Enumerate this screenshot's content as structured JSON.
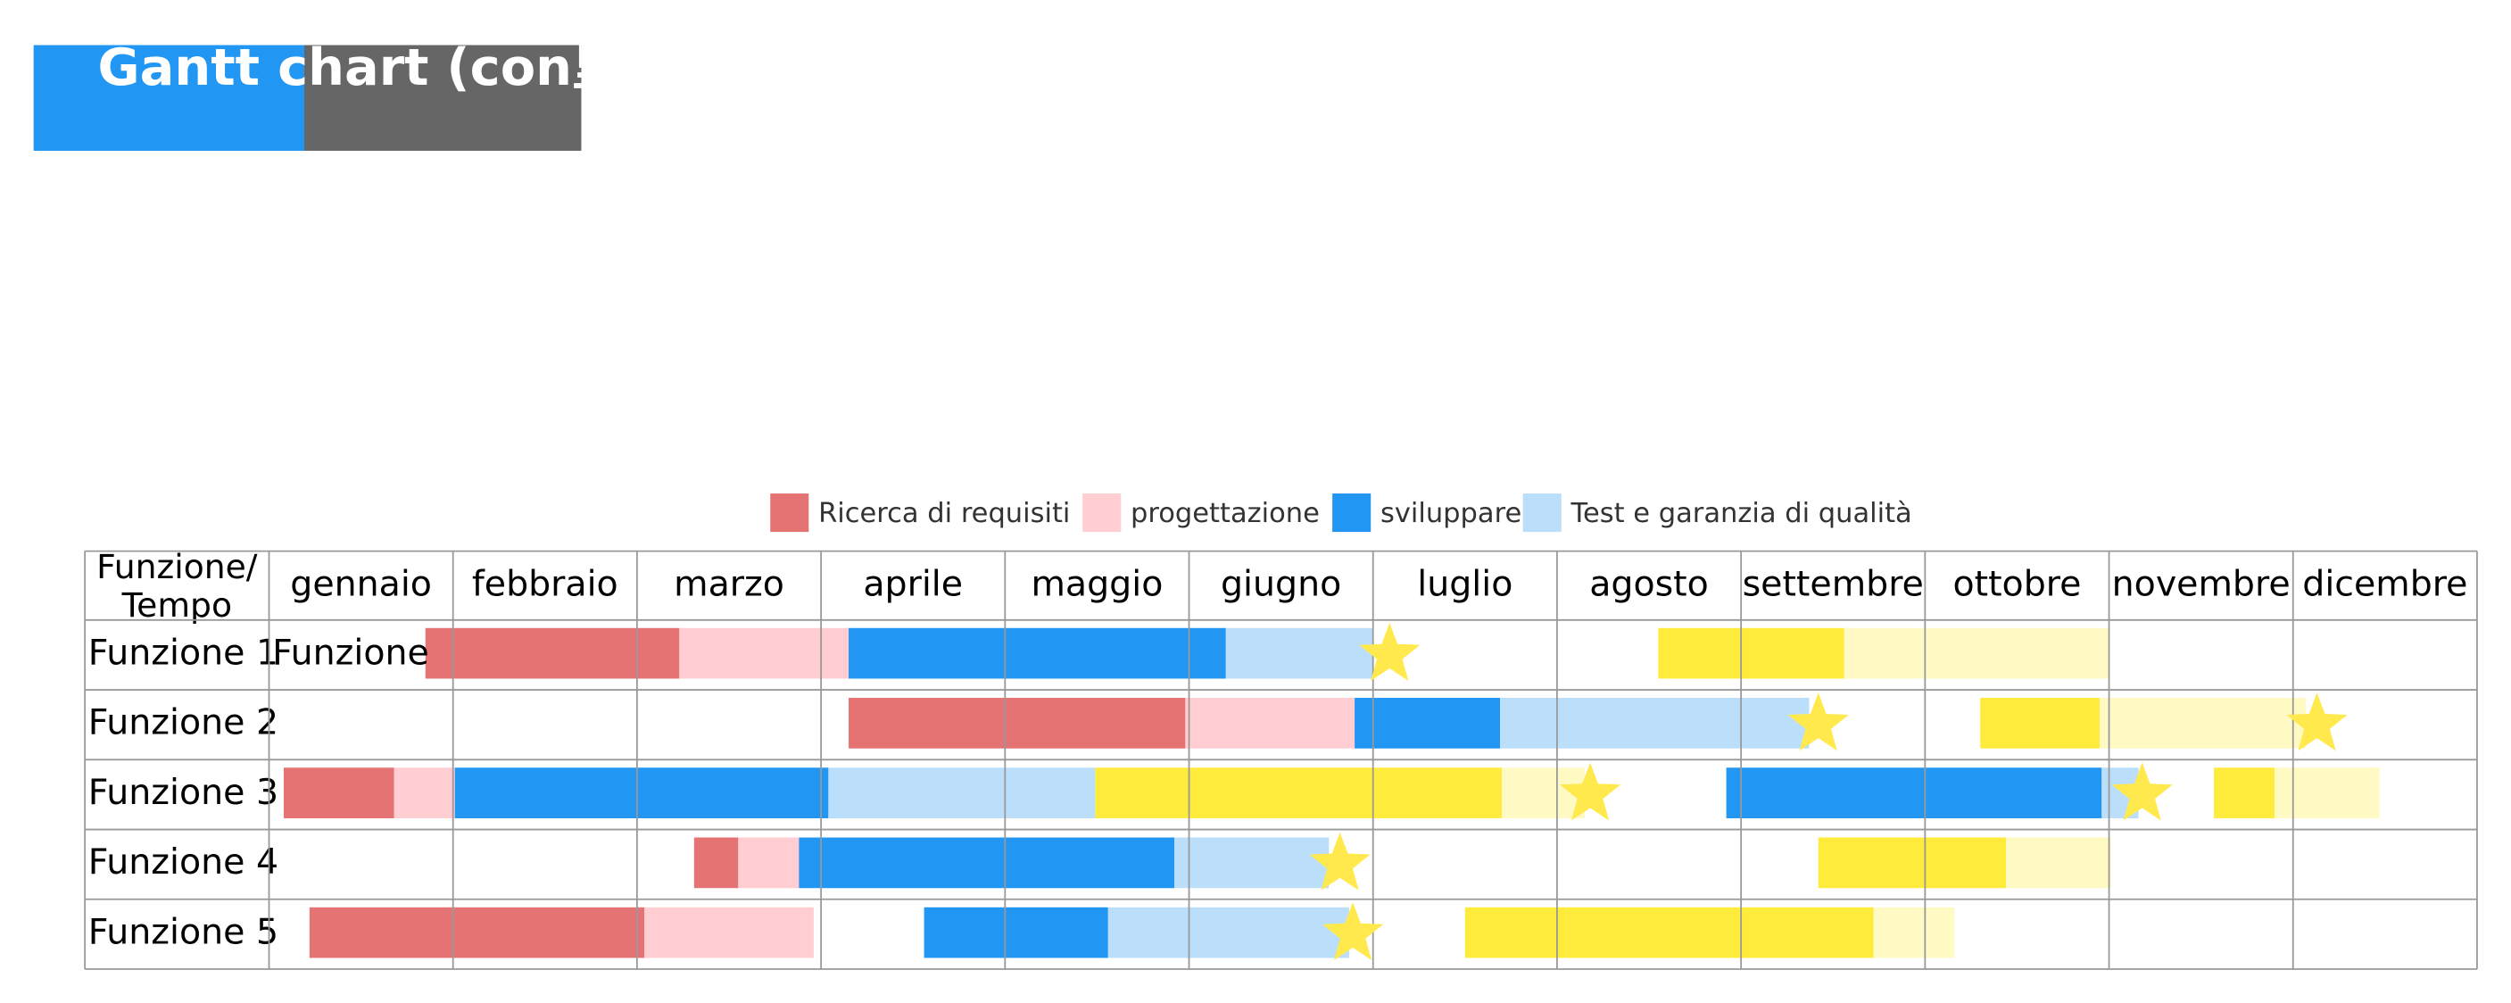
{
  "title": "Gantt chart (con里程碑)",
  "legend": [
    {
      "name": "Ricerca di requisiti",
      "color": "#e57373"
    },
    {
      "name": "progettazione",
      "color": "#ffcdd2"
    },
    {
      "name": "sviluppare",
      "color": "#2196f3"
    },
    {
      "name": "Test e garanzia di qualità",
      "color": "#bbdefb"
    }
  ],
  "corner_label": [
    "Funzione/",
    "Tempo"
  ],
  "months": [
    "gennaio",
    "febbraio",
    "marzo",
    "aprile",
    "maggio",
    "giugno",
    "luglio",
    "agosto",
    "settembre",
    "ottobre",
    "novembre",
    "dicembre"
  ],
  "milestone_color": "#ffe94d",
  "rows": [
    {
      "label": "Funzione 1",
      "note": "Funzione",
      "bars": [
        {
          "start": 0.85,
          "end": 2.23,
          "color": "#e57373"
        },
        {
          "start": 2.23,
          "end": 3.15,
          "color": "#ffcdd2"
        },
        {
          "start": 3.15,
          "end": 5.2,
          "color": "#2196f3"
        },
        {
          "start": 5.2,
          "end": 6.0,
          "color": "#bbdefb"
        },
        {
          "start": 7.55,
          "end": 8.56,
          "color": "#ffeb3b"
        },
        {
          "start": 8.56,
          "end": 10.0,
          "color": "#fff9c4"
        }
      ],
      "milestones": [
        6.09
      ]
    },
    {
      "label": "Funzione 2",
      "bars": [
        {
          "start": 3.15,
          "end": 4.98,
          "color": "#e57373"
        },
        {
          "start": 4.98,
          "end": 5.9,
          "color": "#ffcdd2"
        },
        {
          "start": 5.9,
          "end": 6.69,
          "color": "#2196f3"
        },
        {
          "start": 6.69,
          "end": 8.37,
          "color": "#bbdefb"
        },
        {
          "start": 9.3,
          "end": 9.95,
          "color": "#ffeb3b"
        },
        {
          "start": 9.95,
          "end": 11.07,
          "color": "#fff9c4"
        }
      ],
      "milestones": [
        8.42,
        11.13
      ]
    },
    {
      "label": "Funzione 3",
      "bars": [
        {
          "start": 0.08,
          "end": 0.68,
          "color": "#e57373"
        },
        {
          "start": 0.68,
          "end": 1.01,
          "color": "#ffcdd2"
        },
        {
          "start": 1.01,
          "end": 3.04,
          "color": "#2196f3"
        },
        {
          "start": 3.04,
          "end": 4.49,
          "color": "#bbdefb"
        },
        {
          "start": 4.49,
          "end": 6.7,
          "color": "#ffeb3b"
        },
        {
          "start": 6.7,
          "end": 7.15,
          "color": "#fff9c4"
        },
        {
          "start": 7.92,
          "end": 9.96,
          "color": "#2196f3"
        },
        {
          "start": 9.96,
          "end": 10.16,
          "color": "#bbdefb"
        },
        {
          "start": 10.57,
          "end": 10.9,
          "color": "#ffeb3b"
        },
        {
          "start": 10.9,
          "end": 11.47,
          "color": "#fff9c4"
        }
      ],
      "milestones": [
        7.18,
        10.18
      ]
    },
    {
      "label": "Funzione 4",
      "bars": [
        {
          "start": 2.31,
          "end": 2.55,
          "color": "#e57373"
        },
        {
          "start": 2.55,
          "end": 2.88,
          "color": "#ffcdd2"
        },
        {
          "start": 2.88,
          "end": 4.92,
          "color": "#2196f3"
        },
        {
          "start": 4.92,
          "end": 5.76,
          "color": "#bbdefb"
        },
        {
          "start": 8.42,
          "end": 9.44,
          "color": "#ffeb3b"
        },
        {
          "start": 9.44,
          "end": 10.01,
          "color": "#fff9c4"
        }
      ],
      "milestones": [
        5.82
      ]
    },
    {
      "label": "Funzione 5",
      "bars": [
        {
          "start": 0.22,
          "end": 2.04,
          "color": "#e57373"
        },
        {
          "start": 2.04,
          "end": 2.96,
          "color": "#ffcdd2"
        },
        {
          "start": 3.56,
          "end": 4.56,
          "color": "#2196f3"
        },
        {
          "start": 4.56,
          "end": 5.87,
          "color": "#bbdefb"
        },
        {
          "start": 6.5,
          "end": 8.72,
          "color": "#ffeb3b"
        },
        {
          "start": 8.72,
          "end": 9.16,
          "color": "#fff9c4"
        }
      ],
      "milestones": [
        5.89
      ]
    }
  ]
}
